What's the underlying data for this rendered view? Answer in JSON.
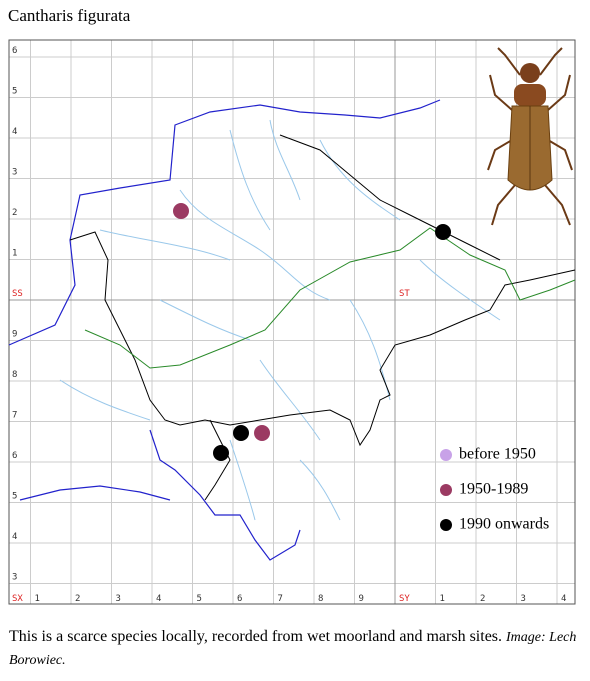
{
  "title": "Cantharis figurata",
  "map": {
    "row_labels": [
      "6",
      "5",
      "4",
      "3",
      "2",
      "1",
      "SS",
      "9",
      "8",
      "7",
      "6",
      "5",
      "4",
      "3"
    ],
    "column_labels": [
      "SX",
      "1",
      "2",
      "3",
      "4",
      "5",
      "6",
      "7",
      "8",
      "9",
      "SY",
      "1",
      "2",
      "3",
      "4"
    ],
    "square_label": "ST",
    "legend": [
      {
        "label": "before 1950",
        "color": "#c8a2e8"
      },
      {
        "label": "1950-1989",
        "color": "#9b3a62"
      },
      {
        "label": "1990 onwards",
        "color": "#000000"
      }
    ]
  },
  "caption": {
    "text": "This is a scarce species locally, recorded from wet moorland and marsh sites.",
    "credit": "Image: Lech Borowiec."
  }
}
